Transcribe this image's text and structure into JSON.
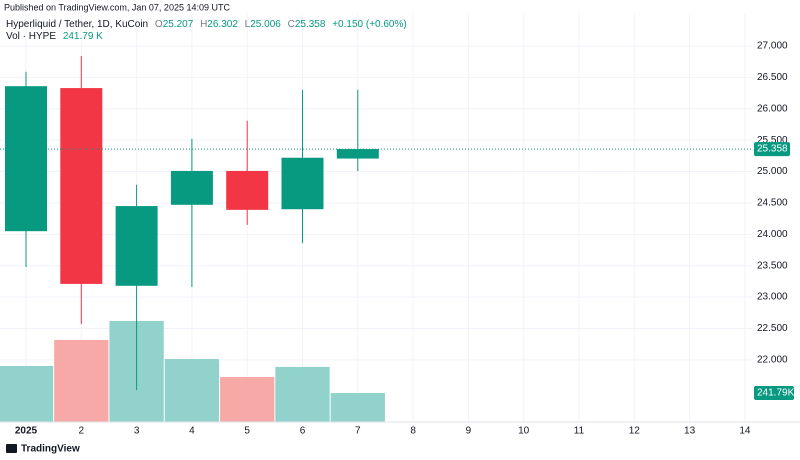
{
  "header": {
    "published": "Published on TradingView.com, Jan 07, 2025 14:09 UTC",
    "symbol": "Hyperliquid / Tether, 1D, KuCoin",
    "ohlc_letters": [
      "O",
      "H",
      "L",
      "C"
    ],
    "change": "+0.150 (+0.60%)",
    "volume_title": "Vol · HYPE",
    "volume": "241.79 K"
  },
  "footer": {
    "brand": "TradingView"
  },
  "chart_data": {
    "type": "candlestick",
    "categories": [
      "2025",
      "2",
      "3",
      "4",
      "5",
      "6",
      "7",
      "8",
      "9",
      "10",
      "11",
      "12",
      "13",
      "14"
    ],
    "open": [
      24.05,
      26.33,
      23.18,
      24.47,
      25.01,
      24.4,
      25.207,
      null,
      null,
      null,
      null,
      null,
      null,
      null
    ],
    "high": [
      26.59,
      26.84,
      24.79,
      25.52,
      25.81,
      26.3,
      26.302,
      null,
      null,
      null,
      null,
      null,
      null,
      null
    ],
    "low": [
      23.48,
      22.57,
      21.52,
      23.16,
      24.15,
      23.86,
      25.006,
      null,
      null,
      null,
      null,
      null,
      null,
      null
    ],
    "close": [
      26.36,
      23.21,
      24.45,
      25.01,
      24.39,
      25.22,
      25.358,
      null,
      null,
      null,
      null,
      null,
      null,
      null
    ],
    "volume": [
      467,
      684,
      842,
      525,
      375,
      459,
      241.79,
      null,
      null,
      null,
      null,
      null,
      null,
      null
    ],
    "volume_label": "241.79K",
    "up_color": "#089981",
    "down_color": "#f23645",
    "volume_up_color": "#92d2cc",
    "volume_down_color": "#f7a9a7",
    "ylim": [
      21.01,
      27.51
    ],
    "yticks": [
      {
        "value": 22,
        "label": "22.000"
      },
      {
        "value": 22.5,
        "label": "22.500"
      },
      {
        "value": 23,
        "label": "23.000"
      },
      {
        "value": 23.5,
        "label": "23.500"
      },
      {
        "value": 24,
        "label": "24.000"
      },
      {
        "value": 24.5,
        "label": "24.500"
      },
      {
        "value": 25,
        "label": "25.000"
      },
      {
        "value": 25.5,
        "label": "25.500"
      },
      {
        "value": 26,
        "label": "26.000"
      },
      {
        "value": 26.5,
        "label": "26.500"
      },
      {
        "value": 27,
        "label": "27.000"
      }
    ],
    "grid": true
  }
}
